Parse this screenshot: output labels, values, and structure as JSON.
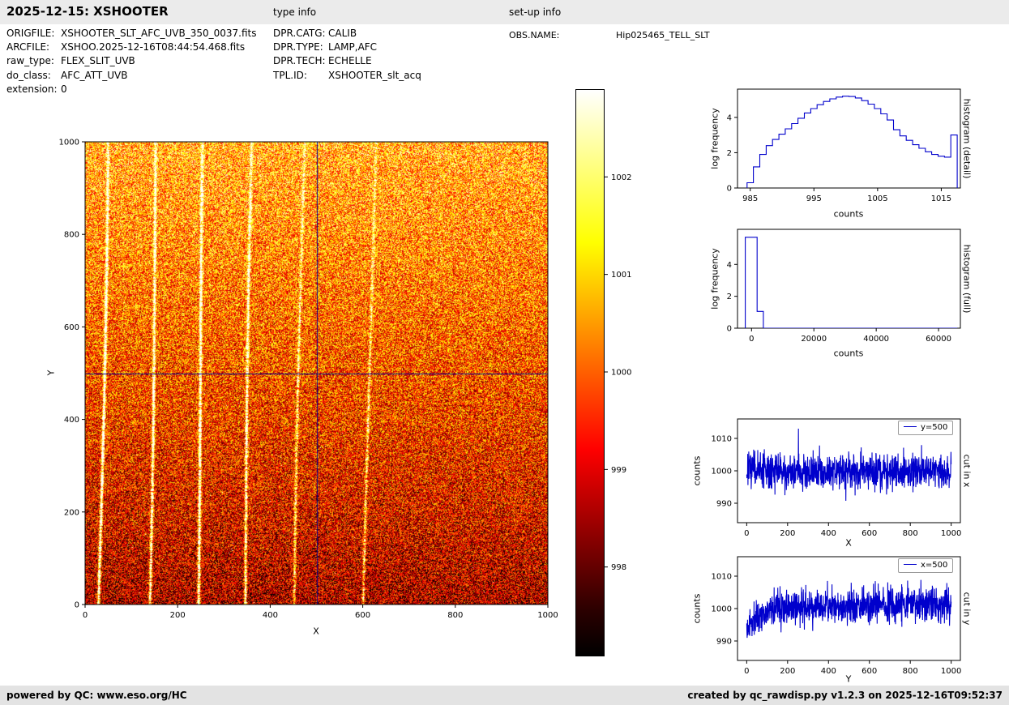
{
  "header": {
    "title": "2025-12-15: XSHOOTER",
    "type_info_label": "type info",
    "setup_info_label": "set-up info"
  },
  "metadata": {
    "left": [
      {
        "label": "ORIGFILE:",
        "value": "XSHOOTER_SLT_AFC_UVB_350_0037.fits"
      },
      {
        "label": "ARCFILE:",
        "value": "XSHOO.2025-12-16T08:44:54.468.fits"
      },
      {
        "label": "raw_type:",
        "value": "FLEX_SLIT_UVB"
      },
      {
        "label": "do_class:",
        "value": "AFC_ATT_UVB"
      },
      {
        "label": "extension:",
        "value": "0"
      }
    ],
    "middle": [
      {
        "label": "DPR.CATG:",
        "value": "CALIB"
      },
      {
        "label": "DPR.TYPE:",
        "value": "LAMP,AFC"
      },
      {
        "label": "DPR.TECH:",
        "value": "ECHELLE"
      },
      {
        "label": "TPL.ID:",
        "value": "XSHOOTER_slt_acq"
      }
    ],
    "right": [
      {
        "label": "OBS.NAME:",
        "value": "Hip025465_TELL_SLT"
      }
    ]
  },
  "footer": {
    "left": "powered by QC: www.eso.org/HC",
    "right": "created by qc_rawdisp.py v1.2.3 on 2025-12-16T09:52:37"
  },
  "chart_data": [
    {
      "id": "detector_image",
      "type": "heatmap",
      "xlabel": "X",
      "ylabel": "Y",
      "xlim": [
        0,
        1000
      ],
      "ylim": [
        0,
        1000
      ],
      "xticks": [
        0,
        200,
        400,
        600,
        800,
        1000
      ],
      "yticks": [
        0,
        200,
        400,
        600,
        800,
        1000
      ],
      "colormap": "hot",
      "mean_counts": 1000,
      "noise_sigma_counts": 3,
      "gradient": "darker at bottom, brighter toward top",
      "streaks_x": [
        28,
        135,
        240,
        345,
        455,
        605
      ],
      "streak_strengths": [
        1.1,
        1.0,
        1.1,
        0.95,
        0.6,
        0.55
      ],
      "streak_tilt": 18,
      "hot_pixel_fraction": 0.0007,
      "crosshair": {
        "x": 500,
        "y": 500,
        "color": "#00008b"
      },
      "colorbar": {
        "vmin": 997.1,
        "vmax": 1002.9,
        "ticks": [
          998,
          999,
          1000,
          1001,
          1002
        ]
      }
    },
    {
      "id": "histogram_detail",
      "type": "line",
      "style": "step",
      "xlabel": "counts",
      "ylabel": "log frequency",
      "right_label": "histogram (detail)",
      "color": "#0000cc",
      "xlim": [
        983,
        1018
      ],
      "ylim": [
        0,
        5.6
      ],
      "xticks": [
        985,
        995,
        1005,
        1015
      ],
      "yticks": [
        0,
        2,
        4
      ],
      "x": [
        985,
        986,
        987,
        988,
        989,
        990,
        991,
        992,
        993,
        994,
        995,
        996,
        997,
        998,
        999,
        1000,
        1001,
        1002,
        1003,
        1004,
        1005,
        1006,
        1007,
        1008,
        1009,
        1010,
        1011,
        1012,
        1013,
        1014,
        1015,
        1016,
        1017
      ],
      "y": [
        0.3,
        1.2,
        1.9,
        2.4,
        2.75,
        3.05,
        3.35,
        3.65,
        3.95,
        4.25,
        4.5,
        4.72,
        4.9,
        5.05,
        5.15,
        5.2,
        5.18,
        5.1,
        4.95,
        4.75,
        4.5,
        4.2,
        3.85,
        3.3,
        2.95,
        2.7,
        2.45,
        2.25,
        2.05,
        1.9,
        1.8,
        1.75,
        3.0
      ]
    },
    {
      "id": "histogram_full",
      "type": "line",
      "style": "poly",
      "xlabel": "counts",
      "ylabel": "log frequency",
      "right_label": "histogram (full)",
      "color": "#0000cc",
      "xlim": [
        -4500,
        67000
      ],
      "ylim": [
        0,
        6.2
      ],
      "xticks": [
        0,
        20000,
        40000,
        60000
      ],
      "yticks": [
        0,
        2,
        4
      ],
      "x": [
        -2000,
        -2000,
        1800,
        1800,
        3800,
        3800,
        66000
      ],
      "y": [
        0,
        5.7,
        5.7,
        1.05,
        1.05,
        0,
        0
      ]
    },
    {
      "id": "cut_in_x",
      "type": "line",
      "legend": "y=500",
      "xlabel": "X",
      "ylabel": "counts",
      "right_label": "cut in x",
      "color": "#0000cc",
      "xlim": [
        -45,
        1045
      ],
      "ylim": [
        984,
        1016
      ],
      "xticks": [
        0,
        200,
        400,
        600,
        800,
        1000
      ],
      "yticks": [
        990,
        1000,
        1010
      ],
      "noise": {
        "mean": 1000,
        "sigma": 2.7,
        "seed": 7,
        "n": 1001,
        "spike": {
          "x": 253,
          "value": 1013
        }
      }
    },
    {
      "id": "cut_in_y",
      "type": "line",
      "legend": "x=500",
      "xlabel": "Y",
      "ylabel": "counts",
      "right_label": "cut in y",
      "color": "#0000cc",
      "xlim": [
        -45,
        1045
      ],
      "ylim": [
        984,
        1016
      ],
      "xticks": [
        0,
        200,
        400,
        600,
        800,
        1000
      ],
      "yticks": [
        990,
        1000,
        1010
      ],
      "noise": {
        "mean": 1000,
        "sigma": 2.7,
        "seed": 11,
        "n": 1001,
        "start_dip": {
          "depth": 7,
          "scale": 45
        },
        "slope": 0.0015
      }
    }
  ]
}
